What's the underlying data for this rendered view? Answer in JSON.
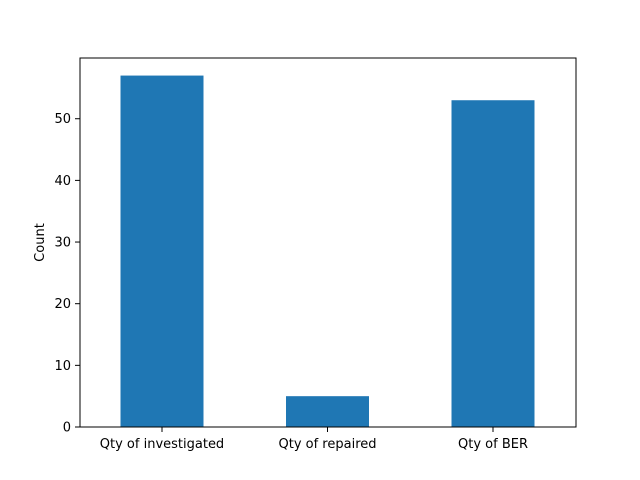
{
  "chart_data": {
    "type": "bar",
    "title": "",
    "xlabel": "",
    "ylabel": "Count",
    "categories": [
      "Qty of investigated",
      "Qty of repaired",
      "Qty of BER"
    ],
    "values": [
      57,
      5,
      53
    ],
    "ylim": [
      0,
      59.85
    ],
    "yticks": [
      0,
      10,
      20,
      30,
      40,
      50
    ],
    "grid": false,
    "legend": "none",
    "bar_color": "#1f77b4"
  }
}
